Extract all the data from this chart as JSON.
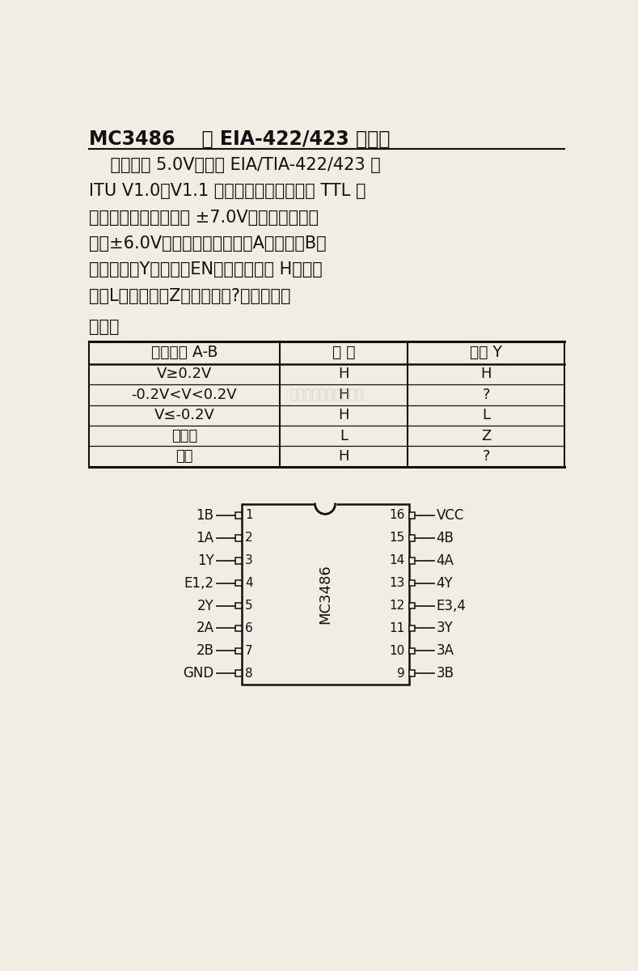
{
  "title": "MC3486    四 EIA-422/423 接收器",
  "desc_line1": "    工作电压 5.0V；满足 EIA/TIA-422/423 和",
  "desc_line2": "ITU V1.0、V1.1 的要求；三态输出，同 TTL 电",
  "desc_line3": "平兼容；共模输入电压 ±7.0V。差模输入电压",
  "desc_line4": "小于±6.0V；共引脚定义如下：A：输入；B：",
  "desc_line5": "反相输入；Y：输出；EN：允许。表中 H：高电",
  "desc_line6": "平；L：低电平；Z：高阻态；?：不确定。",
  "table_label": "功能表",
  "table_headers": [
    "差动输入 A-B",
    "允 许",
    "输出 Y"
  ],
  "table_rows": [
    [
      "V≥0.2V",
      "H",
      "H"
    ],
    [
      "-0.2V<V<0.2V",
      "H",
      "?"
    ],
    [
      "V≤-0.2V",
      "H",
      "L"
    ],
    [
      "不相关",
      "L",
      "Z"
    ],
    [
      "开路",
      "H",
      "?"
    ]
  ],
  "left_pins": [
    "1B",
    "1A",
    "1Y",
    "E1,2",
    "2Y",
    "2A",
    "2B",
    "GND"
  ],
  "left_pin_nums": [
    "1",
    "2",
    "3",
    "4",
    "5",
    "6",
    "7",
    "8"
  ],
  "right_pins": [
    "VCC",
    "4B",
    "4A",
    "4Y",
    "E3,4",
    "3Y",
    "3A",
    "3B"
  ],
  "right_pin_nums": [
    "16",
    "15",
    "14",
    "13",
    "12",
    "11",
    "10",
    "9"
  ],
  "ic_label": "MC3486",
  "watermark": "杭州将睷科技有限公司",
  "bg_color": "#f2ede3",
  "text_color": "#111111",
  "line_color": "#111111"
}
